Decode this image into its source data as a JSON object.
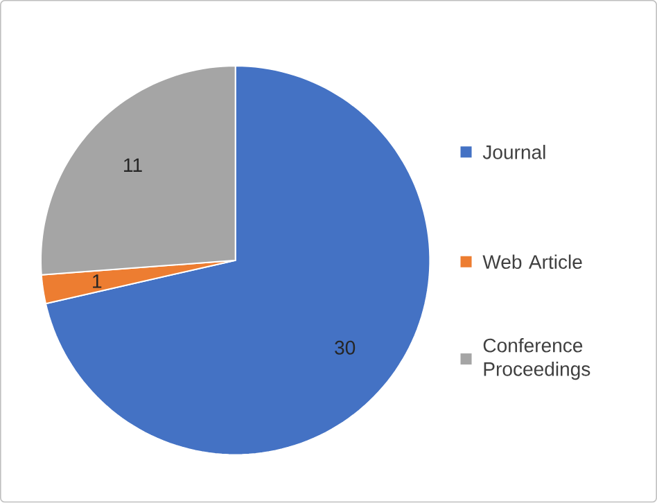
{
  "chart_data": {
    "type": "pie",
    "categories": [
      "Journal",
      "Web Article",
      "Conference Proceedings"
    ],
    "values": [
      30,
      1,
      11
    ],
    "colors": [
      "#4472c4",
      "#ed7d31",
      "#a5a5a5"
    ],
    "data_labels": true,
    "legend": "right"
  }
}
